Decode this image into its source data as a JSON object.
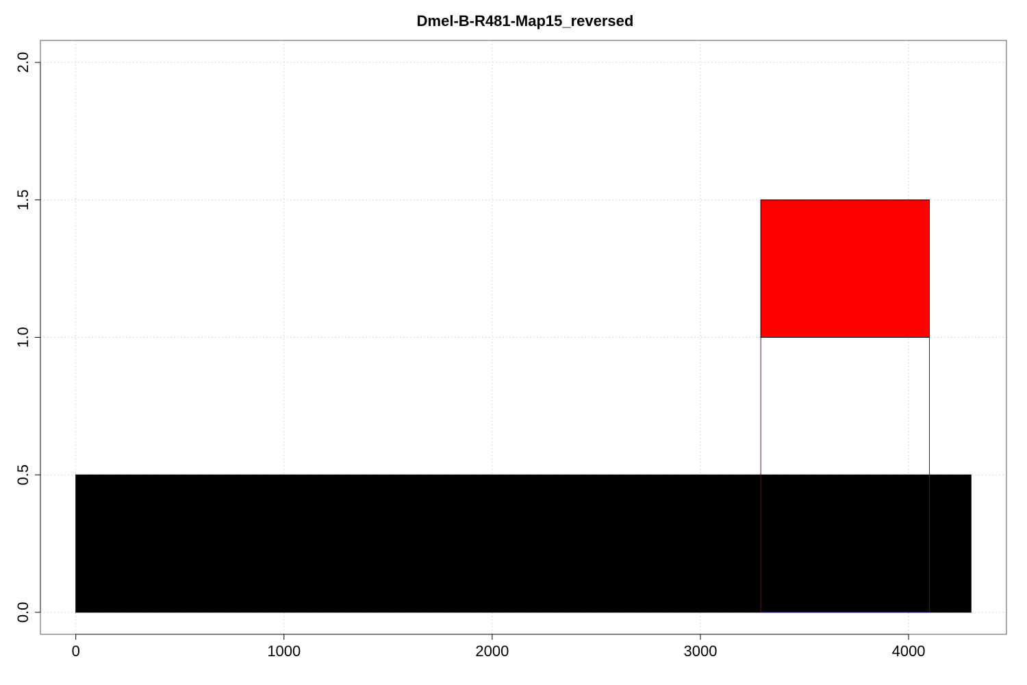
{
  "chart_data": {
    "type": "bar",
    "title": "Dmel-B-R481-Map15_reversed",
    "xlabel": "",
    "ylabel": "",
    "xlim": [
      -170,
      4470
    ],
    "ylim": [
      -0.08,
      2.08
    ],
    "x_ticks": [
      0,
      1000,
      2000,
      3000,
      4000
    ],
    "y_ticks": [
      0.0,
      0.5,
      1.0,
      1.5,
      2.0
    ],
    "x_tick_labels": [
      "0",
      "1000",
      "2000",
      "3000",
      "4000"
    ],
    "y_tick_labels": [
      "0.0",
      "0.5",
      "1.0",
      "1.5",
      "2.0"
    ],
    "grid": true,
    "rects": [
      {
        "x0": 0,
        "x1": 4300,
        "y0": 0.0,
        "y1": 0.5,
        "fill": "#000000",
        "stroke": "#000000"
      },
      {
        "x0": 3290,
        "x1": 4100,
        "y0": 0.0,
        "y1": 1.0,
        "fill": "none",
        "stroke": "#8b0000"
      },
      {
        "x0": 3290,
        "x1": 4100,
        "y0": 1.0,
        "y1": 1.5,
        "fill": "#ff0000",
        "stroke": "#000000"
      }
    ],
    "lines": [
      {
        "x0": 3290,
        "x1": 4100,
        "y": 0.0,
        "color": "#0000ff"
      }
    ]
  }
}
